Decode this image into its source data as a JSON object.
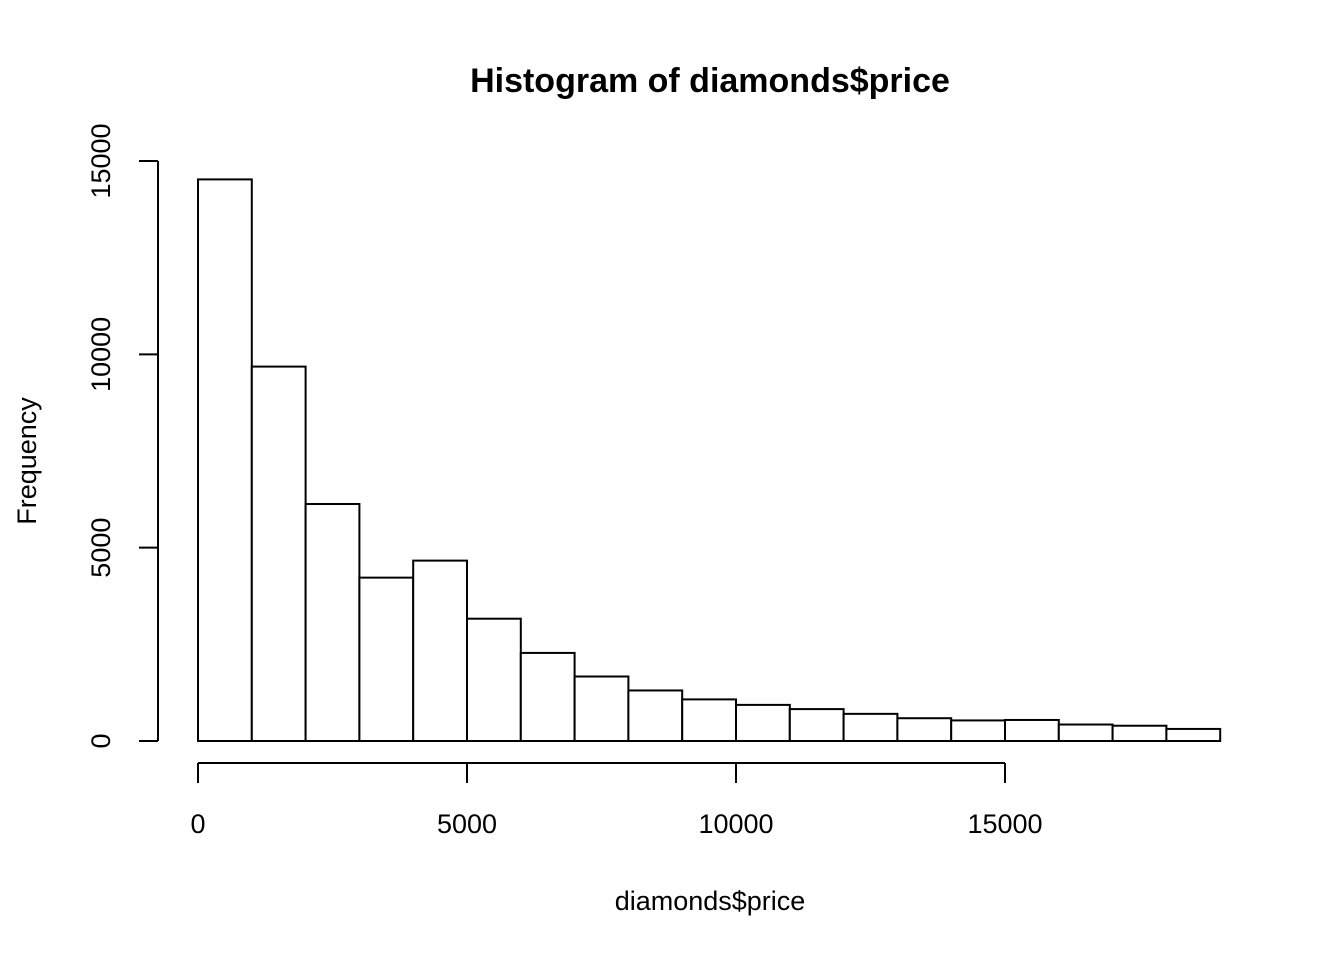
{
  "chart_data": {
    "type": "bar",
    "title": "Histogram of diamonds$price",
    "xlabel": "diamonds$price",
    "ylabel": "Frequency",
    "bin_edges": [
      0,
      1000,
      2000,
      3000,
      4000,
      5000,
      6000,
      7000,
      8000,
      9000,
      10000,
      11000,
      12000,
      13000,
      14000,
      15000,
      16000,
      17000,
      18000,
      19000
    ],
    "values": [
      14524,
      9683,
      6129,
      4225,
      4665,
      3163,
      2278,
      1668,
      1307,
      1076,
      934,
      825,
      702,
      589,
      532,
      544,
      426,
      395,
      312
    ],
    "x_ticks": [
      0,
      5000,
      10000,
      15000
    ],
    "x_tick_labels": [
      "0",
      "5000",
      "10000",
      "15000"
    ],
    "y_ticks": [
      0,
      5000,
      10000,
      15000
    ],
    "y_tick_labels": [
      "0",
      "5000",
      "10000",
      "15000"
    ],
    "ylim": [
      0,
      15000
    ],
    "grid": false,
    "bar_fill": "#ffffff",
    "bar_stroke": "#000000"
  }
}
